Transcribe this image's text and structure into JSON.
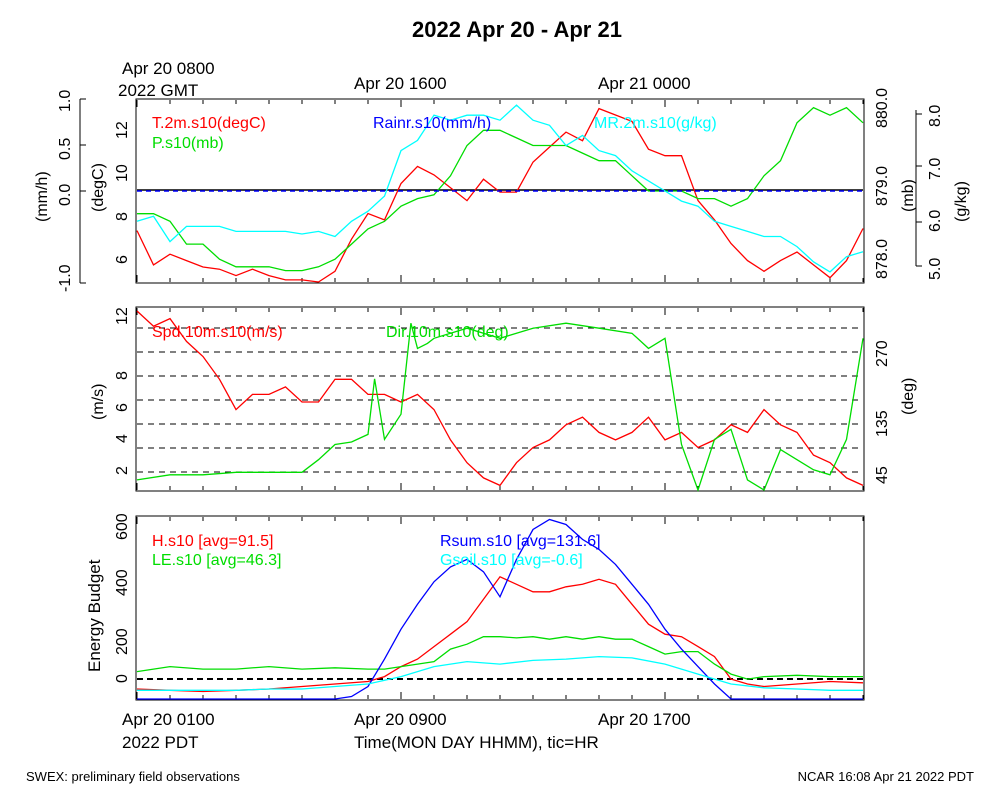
{
  "chart_data": {
    "title": "2022 Apr 20 - Apr 21",
    "top_labels": [
      "Apr 20 0800",
      "2022 GMT",
      "Apr 20 1600",
      "Apr 21 0000"
    ],
    "bottom_labels": [
      "Apr 20 0100",
      "2022 PDT",
      "Apr 20 0900",
      "Apr 20 1700"
    ],
    "xlabel": "Time(MON DAY HHMM), tic=HR",
    "footer_left": "SWEX: preliminary field observations",
    "footer_right": "NCAR 16:08 Apr 21 2022 PDT",
    "x_range_hours": [
      0,
      22
    ],
    "panels": [
      {
        "type": "line",
        "axes": {
          "rain": {
            "label": "(mm/h)",
            "range": [
              -1.0,
              1.0
            ],
            "ticks": [
              "-1.0",
              "0.0",
              "0.5",
              "1.0"
            ]
          },
          "temp": {
            "label": "(degC)",
            "range": [
              5,
              13.5
            ],
            "ticks": [
              "6",
              "8",
              "10",
              "12"
            ]
          },
          "pres": {
            "label": "(mb)",
            "range": [
              877.8,
              880.2
            ],
            "ticks": [
              "878.0",
              "879.0",
              "880.0"
            ]
          },
          "mr": {
            "label": "(g/kg)",
            "range": [
              4.8,
              8.4
            ],
            "ticks": [
              "5.0",
              "6.0",
              "7.0",
              "8.0"
            ]
          }
        },
        "series": [
          {
            "name": "T.2m.s10(degC)",
            "color": "#ff0000",
            "axis": "temp",
            "x": [
              0,
              0.5,
              1,
              1.5,
              2,
              2.5,
              3,
              3.5,
              4,
              4.5,
              5,
              5.5,
              6,
              6.5,
              7,
              7.5,
              8,
              8.5,
              9,
              9.5,
              10,
              10.5,
              11,
              11.5,
              12,
              12.5,
              13,
              13.5,
              14,
              14.5,
              15,
              15.5,
              16,
              16.5,
              17,
              17.5,
              18,
              18.5,
              19,
              19.5,
              20,
              20.5,
              21,
              21.5,
              22
            ],
            "y": [
              7.4,
              5.8,
              6.3,
              6.0,
              5.7,
              5.6,
              5.3,
              5.6,
              5.3,
              5.1,
              5.1,
              5.0,
              5.5,
              7.0,
              8.2,
              7.9,
              9.6,
              10.4,
              10.0,
              9.4,
              8.8,
              9.8,
              9.2,
              9.2,
              10.6,
              11.3,
              12.0,
              11.6,
              13.1,
              12.8,
              12.5,
              11.2,
              10.9,
              10.9,
              8.8,
              7.9,
              6.8,
              6.0,
              5.5,
              6.0,
              6.4,
              5.8,
              5.2,
              6.0,
              7.5
            ]
          },
          {
            "name": "P.s10(mb)",
            "color": "#00dd00",
            "axis": "pres",
            "x": [
              0,
              0.5,
              1,
              1.5,
              2,
              2.5,
              3,
              3.5,
              4,
              4.5,
              5,
              5.5,
              6,
              6.5,
              7,
              7.5,
              8,
              8.5,
              9,
              9.5,
              10,
              10.5,
              11,
              11.5,
              12,
              12.5,
              13,
              13.5,
              14,
              14.5,
              15,
              15.5,
              16,
              16.5,
              17,
              17.5,
              18,
              18.5,
              19,
              19.5,
              20,
              20.5,
              21,
              21.5,
              22
            ],
            "y": [
              878.7,
              878.7,
              878.6,
              878.3,
              878.3,
              878.1,
              878.0,
              878.0,
              878.0,
              877.95,
              877.95,
              878.0,
              878.1,
              878.3,
              878.5,
              878.6,
              878.8,
              878.9,
              878.95,
              879.2,
              879.6,
              879.8,
              879.8,
              879.7,
              879.6,
              879.6,
              879.6,
              879.5,
              879.4,
              879.4,
              879.2,
              879.0,
              879.0,
              879.0,
              878.9,
              878.9,
              878.8,
              878.9,
              879.2,
              879.4,
              879.9,
              880.1,
              880.0,
              880.1,
              879.9
            ]
          },
          {
            "name": "MR.2m.s10(g/kg)",
            "color": "#00ffff",
            "axis": "mr",
            "x": [
              0,
              0.5,
              1,
              1.5,
              2,
              2.5,
              3,
              3.5,
              4,
              4.5,
              5,
              5.5,
              6,
              6.5,
              7,
              7.5,
              8,
              8.5,
              9,
              9.5,
              10,
              10.5,
              11,
              11.5,
              12,
              12.5,
              13,
              13.5,
              14,
              14.5,
              15,
              15.5,
              16,
              16.5,
              17,
              17.5,
              18,
              18.5,
              19,
              19.5,
              20,
              20.5,
              21,
              21.5,
              22
            ],
            "y": [
              6.0,
              6.1,
              5.6,
              5.9,
              5.9,
              5.9,
              5.8,
              5.8,
              5.8,
              5.8,
              5.75,
              5.8,
              5.7,
              6.0,
              6.2,
              6.5,
              7.4,
              7.6,
              8.1,
              8.0,
              8.1,
              8.1,
              8.0,
              8.3,
              8.0,
              7.9,
              7.5,
              7.7,
              7.4,
              7.3,
              7.0,
              6.8,
              6.6,
              6.4,
              6.3,
              6.0,
              5.9,
              5.8,
              5.7,
              5.7,
              5.5,
              5.2,
              5.0,
              5.3,
              5.4
            ]
          },
          {
            "name": "Rainr.s10(mm/h)",
            "color": "#0000ff",
            "axis": "rain",
            "x": [
              0,
              22
            ],
            "y": [
              0.0,
              0.0
            ]
          }
        ]
      },
      {
        "type": "line",
        "axes": {
          "spd": {
            "label": "(m/s)",
            "range": [
              0.2,
              12.2
            ],
            "ticks": [
              "2",
              "4",
              "6",
              "8",
              "12"
            ]
          },
          "dir": {
            "label": "(deg)",
            "range": [
              0,
              360
            ],
            "ticks": [
              "45",
              "135",
              "270"
            ]
          }
        },
        "series": [
          {
            "name": "Spd.10m.s10(m/s)",
            "color": "#ff0000",
            "axis": "spd",
            "x": [
              0,
              0.5,
              1,
              1.5,
              2,
              2.5,
              3,
              3.5,
              4,
              4.5,
              5,
              5.5,
              6,
              6.5,
              7,
              7.5,
              8,
              8.5,
              9,
              9.5,
              10,
              10.5,
              11,
              11.5,
              12,
              12.5,
              13,
              13.5,
              14,
              14.5,
              15,
              15.5,
              16,
              16.5,
              17,
              17.5,
              18,
              18.5,
              19,
              19.5,
              20,
              20.5,
              21,
              21.5,
              22
            ],
            "y": [
              12.0,
              11.0,
              11.5,
              10.0,
              9.0,
              7.5,
              5.5,
              6.5,
              6.5,
              7.0,
              6.0,
              6.0,
              7.5,
              7.5,
              6.5,
              6.5,
              6.0,
              6.5,
              5.5,
              3.5,
              2.0,
              1.0,
              0.5,
              2.0,
              3.0,
              3.5,
              4.5,
              5.0,
              4.0,
              3.5,
              4.0,
              5.0,
              3.5,
              4.0,
              3.0,
              3.5,
              4.5,
              4.0,
              5.5,
              4.5,
              4.0,
              2.5,
              2.0,
              1.0,
              0.5
            ]
          },
          {
            "name": "Dir.10m.s10(deg)",
            "color": "#00dd00",
            "axis": "dir",
            "x": [
              0,
              1,
              2,
              3,
              4,
              5,
              5.5,
              6,
              6.5,
              7,
              7.2,
              7.5,
              8,
              8.3,
              8.5,
              8.8,
              9,
              10,
              11,
              12,
              13,
              14,
              15,
              15.5,
              16,
              16.5,
              17,
              17.5,
              18,
              18.5,
              19,
              19.5,
              20,
              20.5,
              21,
              21.5,
              22
            ],
            "y": [
              20,
              30,
              30,
              35,
              35,
              35,
              60,
              90,
              95,
              110,
              220,
              100,
              150,
              330,
              280,
              290,
              300,
              320,
              300,
              320,
              330,
              320,
              310,
              280,
              300,
              90,
              0,
              100,
              120,
              20,
              0,
              80,
              60,
              40,
              30,
              100,
              300
            ]
          }
        ]
      },
      {
        "type": "line",
        "axes": {
          "energy": {
            "label": "Energy Budget",
            "range": [
              -80,
              650
            ],
            "ticks": [
              "0",
              "200",
              "400",
              "600"
            ]
          }
        },
        "series": [
          {
            "name": "H.s10 [avg=91.5]",
            "color": "#ff0000",
            "x": [
              0,
              1,
              2,
              3,
              4,
              5,
              6,
              7,
              7.5,
              8,
              8.5,
              9,
              9.5,
              10,
              10.5,
              11,
              11.5,
              12,
              12.5,
              13,
              13.5,
              14,
              14.5,
              15,
              15.5,
              16,
              16.5,
              17,
              17.5,
              18,
              18.5,
              19,
              20,
              21,
              22
            ],
            "y": [
              -40,
              -45,
              -50,
              -45,
              -40,
              -30,
              -20,
              -10,
              10,
              50,
              80,
              130,
              180,
              230,
              320,
              410,
              380,
              350,
              350,
              370,
              380,
              400,
              380,
              300,
              220,
              180,
              170,
              130,
              90,
              0,
              -20,
              -30,
              -20,
              -10,
              -15
            ]
          },
          {
            "name": "LE.s10 [avg=46.3]",
            "color": "#00dd00",
            "x": [
              0,
              1,
              2,
              3,
              4,
              5,
              6,
              7,
              7.5,
              8,
              8.5,
              9,
              9.5,
              10,
              10.5,
              11,
              11.5,
              12,
              12.5,
              13,
              13.5,
              14,
              14.5,
              15,
              15.5,
              16,
              16.5,
              17,
              17.5,
              18,
              18.5,
              19,
              20,
              21,
              22
            ],
            "y": [
              30,
              50,
              40,
              40,
              50,
              40,
              45,
              40,
              40,
              50,
              60,
              70,
              120,
              140,
              170,
              170,
              165,
              170,
              160,
              170,
              160,
              170,
              160,
              160,
              130,
              100,
              110,
              110,
              60,
              20,
              0,
              10,
              15,
              10,
              10
            ]
          },
          {
            "name": "Rsum.s10 [avg=131.6]",
            "color": "#0000ff",
            "x": [
              0,
              1,
              2,
              3,
              4,
              5,
              6,
              6.5,
              7,
              7.5,
              8,
              8.5,
              9,
              9.5,
              10,
              10.5,
              11,
              11.5,
              12,
              12.5,
              13,
              13.5,
              14,
              14.5,
              15,
              15.5,
              16,
              16.5,
              17,
              17.5,
              18,
              18.5,
              19,
              20,
              21,
              22
            ],
            "y": [
              -95,
              -95,
              -90,
              -90,
              -85,
              -85,
              -85,
              -70,
              -30,
              80,
              200,
              300,
              390,
              450,
              480,
              430,
              330,
              480,
              600,
              640,
              620,
              560,
              520,
              460,
              380,
              300,
              200,
              120,
              50,
              -20,
              -80,
              -95,
              -95,
              -90,
              -85,
              -85
            ]
          },
          {
            "name": "Gsoil.s10 [avg=-0.6]",
            "color": "#00ffff",
            "x": [
              0,
              1,
              2,
              3,
              4,
              5,
              6,
              7,
              8,
              9,
              10,
              11,
              12,
              13,
              14,
              15,
              16,
              17,
              18,
              19,
              20,
              21,
              22
            ],
            "y": [
              -45,
              -45,
              -45,
              -45,
              -40,
              -40,
              -30,
              -20,
              10,
              50,
              70,
              60,
              75,
              80,
              90,
              85,
              60,
              20,
              -20,
              -35,
              -40,
              -45,
              -45
            ]
          }
        ]
      }
    ]
  }
}
